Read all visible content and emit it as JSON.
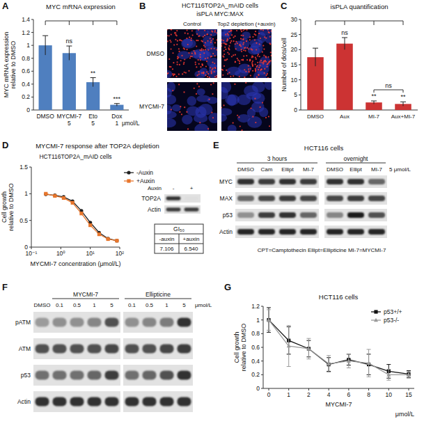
{
  "chart_data": [
    {
      "type": "bar",
      "panel": "A",
      "title": "MYC mRNA expression",
      "y_label": "MYC mRNA expression relative to DMSO",
      "categories": [
        "DMSO",
        "MYCMI-7",
        "Eto",
        "Dox"
      ],
      "doses": [
        null,
        5,
        5,
        1
      ],
      "dose_unit": "μmol/L",
      "values": [
        1.0,
        0.88,
        0.43,
        0.08
      ],
      "errors": [
        0.15,
        0.11,
        0.07,
        0.02
      ],
      "significance": [
        null,
        "ns",
        "**",
        "***"
      ],
      "color": "#4f7fbf",
      "ylim": [
        0,
        1.4
      ],
      "yticks": [
        0,
        0.2,
        0.4,
        0.6,
        0.8,
        1,
        1.2,
        1.4
      ]
    },
    {
      "type": "bar",
      "panel": "C",
      "title": "isPLA quantification",
      "y_label": "Number of dots/cell",
      "categories": [
        "DMSO",
        "Aux",
        "MI-7",
        "Aux+MI-7"
      ],
      "values": [
        17.5,
        22,
        2.5,
        2
      ],
      "errors": [
        3,
        2,
        0.5,
        0.7
      ],
      "significance": [
        null,
        "ns",
        "**",
        "**"
      ],
      "comparison": {
        "text": "ns",
        "categories": [
          "MI-7",
          "Aux+MI-7"
        ]
      },
      "color": "#cc3333",
      "ylim": [
        0,
        30
      ],
      "yticks": [
        0,
        5,
        10,
        15,
        20,
        25,
        30
      ]
    },
    {
      "type": "line",
      "panel": "D",
      "title": "MYCMI-7 response after TOP2A depletion",
      "subtitle": "HCT116TOP2A_mAID cells",
      "x_label": "MYCMI-7 concentration (μmol/L)",
      "y_label": "Cell growth relative to DMSO",
      "log": "x",
      "x": [
        0.31,
        0.63,
        1.25,
        2.5,
        5,
        10,
        20,
        40,
        80
      ],
      "series": [
        {
          "name": "-Auxin",
          "color": "#222222",
          "marker": "circle",
          "values": [
            0.99,
            0.97,
            0.94,
            0.86,
            0.68,
            0.46,
            0.27,
            0.16,
            0.12
          ]
        },
        {
          "name": "+Auxin",
          "color": "#e8762c",
          "marker": "square",
          "values": [
            1.0,
            0.96,
            0.92,
            0.83,
            0.63,
            0.41,
            0.24,
            0.15,
            0.12
          ]
        }
      ],
      "xlim": [
        0.1,
        100
      ],
      "xticks": [
        {
          "value": 0.1,
          "label": "10⁻¹"
        },
        {
          "value": 1,
          "label": "10⁰"
        },
        {
          "value": 10,
          "label": "10¹"
        },
        {
          "value": 100,
          "label": "10²"
        }
      ],
      "ylim": [
        0,
        1.5
      ],
      "yticks": [
        0,
        0.5,
        1,
        1.5
      ],
      "legend": "right"
    },
    {
      "type": "line",
      "panel": "G",
      "title": "HCT116 cells",
      "x_label": "MYCMI-7",
      "x_unit": "μmol/L",
      "y_label": "Cell growth relative to DMSO",
      "categories": [
        "0",
        "1",
        "2",
        "4",
        "6",
        "8",
        "10",
        "15"
      ],
      "series": [
        {
          "name": "p53+/+",
          "color": "#111111",
          "marker": "square",
          "values": [
            1.0,
            0.7,
            0.58,
            0.35,
            0.42,
            0.35,
            0.25,
            0.21
          ],
          "errors": [
            0.18,
            0.2,
            0.12,
            0.1,
            0.08,
            0.15,
            0.1,
            0.05
          ]
        },
        {
          "name": "p53-/-",
          "color": "#9a9a9a",
          "marker": "triangle",
          "values": [
            1.0,
            0.62,
            0.58,
            0.36,
            0.4,
            0.37,
            0.2,
            0.2
          ],
          "errors": [
            0.15,
            0.3,
            0.15,
            0.12,
            0.1,
            0.2,
            0.08,
            0.05
          ]
        }
      ],
      "ylim": [
        0,
        1.2
      ],
      "yticks": [
        0,
        0.2,
        0.4,
        0.6,
        0.8,
        1,
        1.2
      ],
      "legend": "upper right"
    }
  ],
  "microscopy": {
    "panel": "B",
    "title": "HCT116TOP2A_mAID cells",
    "subtitle": "isPLA MYC:MAX",
    "columns": [
      "Control",
      "Top2 depletion (+auxin)"
    ],
    "rows": [
      "DMSO",
      "MYCMI-7"
    ],
    "signal": [
      [
        1,
        1.2
      ],
      [
        0.14,
        0.11
      ]
    ]
  },
  "inset_blot": {
    "header": "Auxin",
    "groups": [
      {
        "label": null,
        "lanes": [
          "-",
          "+"
        ]
      }
    ],
    "rows": [
      {
        "name": "TOP2A",
        "bands": [
          0.85,
          0.03
        ]
      },
      {
        "name": "Actin",
        "bands": [
          0.8,
          0.8
        ]
      }
    ]
  },
  "gi50_table": {
    "title": "GI₅₀",
    "columns": [
      "-auxin",
      "+auxin"
    ],
    "values": [
      "7.106",
      "6.540"
    ]
  },
  "blots": [
    {
      "panel": "E",
      "title": "HCT116 cells",
      "groups": [
        {
          "label": "3 hours",
          "lanes": [
            "DMSO",
            "Cam",
            "Ellipt",
            "MI-7"
          ]
        },
        {
          "label": "overnight",
          "lanes": [
            "DMSO",
            "Ellipt",
            "MI-7"
          ]
        }
      ],
      "unit": "5 μmol/L",
      "rows": [
        {
          "name": "MYC",
          "bands": [
            0.85,
            0.8,
            0.85,
            0.8,
            0.85,
            0.85,
            0.6
          ]
        },
        {
          "name": "MAX",
          "bands": [
            0.6,
            0.75,
            0.8,
            0.75,
            0.75,
            0.8,
            0.75
          ]
        },
        {
          "name": "p53",
          "bands": [
            0.4,
            0.8,
            0.85,
            0.6,
            0.45,
            0.95,
            0.7
          ]
        },
        {
          "name": "Actin",
          "bands": [
            0.9,
            0.9,
            0.9,
            0.9,
            0.9,
            0.9,
            0.9
          ]
        }
      ],
      "footnote": "CPT=Camptothecin Ellipt=Ellipticine MI-7=MYCMI-7"
    },
    {
      "panel": "F",
      "groups": [
        {
          "label": null,
          "lanes": [
            "DMSO"
          ]
        },
        {
          "label": "MYCMI-7",
          "lanes": [
            "0.1",
            "0.5",
            "1",
            "5"
          ]
        },
        {
          "label": "Ellipticine",
          "lanes": [
            "0.1",
            "0.5",
            "1",
            "5"
          ]
        }
      ],
      "unit": "μmol/L",
      "rows": [
        {
          "name": "pATM",
          "bands": [
            0.35,
            0.4,
            0.4,
            0.45,
            0.7,
            0.4,
            0.45,
            0.5,
            0.85
          ]
        },
        {
          "name": "ATM",
          "bands": [
            0.7,
            0.7,
            0.7,
            0.7,
            0.75,
            0.7,
            0.7,
            0.75,
            0.8
          ]
        },
        {
          "name": "p53",
          "bands": [
            0.55,
            0.55,
            0.55,
            0.6,
            0.8,
            0.55,
            0.6,
            0.7,
            0.85
          ]
        },
        {
          "name": "Actin",
          "bands": [
            0.85,
            0.85,
            0.85,
            0.85,
            0.85,
            0.85,
            0.85,
            0.85,
            0.85
          ]
        }
      ]
    }
  ]
}
